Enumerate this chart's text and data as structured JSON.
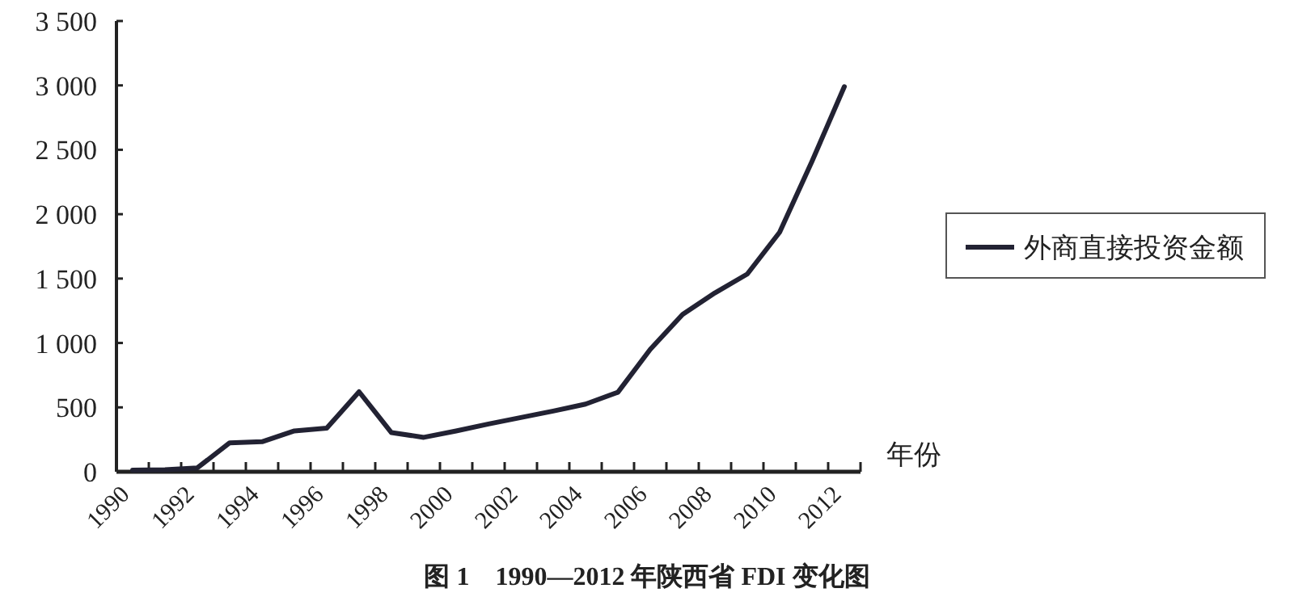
{
  "chart_data": {
    "type": "line",
    "title": "图 1　1990—2012 年陕西省 FDI 变化图",
    "xlabel": "年份",
    "categories": [
      "1990",
      null,
      "1992",
      null,
      "1994",
      null,
      "1996",
      null,
      "1998",
      null,
      "2000",
      null,
      "2002",
      null,
      "2004",
      null,
      "2006",
      null,
      "2008",
      null,
      "2010",
      null,
      "2012"
    ],
    "series": [
      {
        "name": "外商直接投资金额",
        "color": "#222233",
        "values": [
          12,
          15,
          30,
          225,
          233,
          317,
          338,
          621,
          304,
          267,
          317,
          371,
          421,
          471,
          525,
          617,
          950,
          1222,
          1389,
          1535,
          1860,
          2410,
          2990
        ]
      }
    ],
    "ylim": [
      0,
      3500
    ],
    "yticks": [
      {
        "value": 0,
        "label": "0"
      },
      {
        "value": 500,
        "label": "500"
      },
      {
        "value": 1000,
        "label": "1 000"
      },
      {
        "value": 1500,
        "label": "1 500"
      },
      {
        "value": 2000,
        "label": "2 000"
      },
      {
        "value": 2500,
        "label": "2 500"
      },
      {
        "value": 3000,
        "label": "3 000"
      },
      {
        "value": 3500,
        "label": "3 500"
      }
    ],
    "grid": false,
    "legend": "right",
    "marker": "none",
    "line_style": "solid"
  }
}
